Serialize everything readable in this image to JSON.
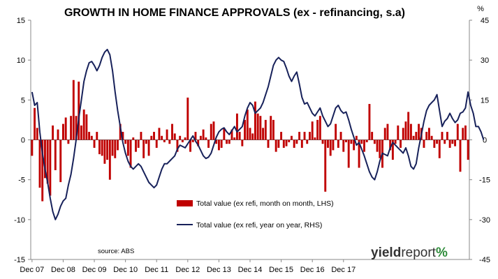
{
  "chart_data": {
    "type": "bar+line",
    "title": "GROWTH IN HOME FINANCE APPROVALS (ex - refinancing, s.a)",
    "right_unit": "%",
    "source": "source: ABS",
    "logo": {
      "part1": "yield",
      "part2": "report",
      "part3": "%"
    },
    "x_tick_labels": [
      "Dec 07",
      "Dec 08",
      "Dec 09",
      "Dec 10",
      "Dec 11",
      "Dec 12",
      "Dec 13",
      "Dec 14",
      "Dec 15",
      "Dec 16",
      "Dec 17"
    ],
    "left_axis": {
      "min": -15,
      "max": 15,
      "ticks": [
        "15",
        "10",
        "5",
        "0",
        "-5",
        "-10",
        "-15"
      ]
    },
    "right_axis": {
      "min": -45,
      "max": 45,
      "ticks": [
        "45",
        "30",
        "15",
        "0",
        "-15",
        "-30",
        "-45"
      ]
    },
    "series": [
      {
        "name": "Total value (ex refi, month on month, LHS)",
        "axis": "left",
        "color": "#c00000",
        "style": "bar",
        "values": [
          -2.0,
          4.0,
          1.5,
          -6.0,
          -7.7,
          -4.8,
          -5.5,
          -7.0,
          1.8,
          -3.8,
          1.3,
          -5.3,
          2.0,
          2.8,
          -0.5,
          3.0,
          7.5,
          3.0,
          7.3,
          1.8,
          3.8,
          3.2,
          1.0,
          0.5,
          -1.0,
          1.0,
          -1.8,
          -2.0,
          -3.0,
          -2.5,
          -5.0,
          -2.0,
          -2.3,
          -1.3,
          2.0,
          1.0,
          -0.5,
          -2.0,
          -3.5,
          0.3,
          -1.5,
          -1.0,
          1.0,
          -2.3,
          -0.5,
          -2.0,
          0.5,
          1.0,
          -1.0,
          1.5,
          0.5,
          -0.3,
          1.3,
          -0.5,
          2.0,
          0.8,
          -1.5,
          0.5,
          -0.3,
          0.3,
          5.3,
          -1.5,
          -0.3,
          1.0,
          -0.8,
          0.5,
          1.3,
          0.3,
          -1.0,
          2.0,
          2.3,
          -0.5,
          -1.3,
          -1.0,
          1.5,
          -0.5,
          -0.5,
          1.3,
          0.3,
          3.3,
          1.0,
          -0.8,
          2.5,
          3.8,
          1.5,
          0.8,
          4.8,
          3.3,
          3.0,
          1.5,
          2.5,
          -1.0,
          3.0,
          2.5,
          -1.5,
          -1.0,
          1.0,
          -1.0,
          -0.8,
          -0.3,
          0.5,
          -1.0,
          -0.5,
          1.0,
          -1.0,
          1.0,
          -0.5,
          1.0,
          2.3,
          0.3,
          2.5,
          3.0,
          -0.5,
          -6.5,
          -1.0,
          -2.0,
          -1.3,
          2.0,
          -1.0,
          1.0,
          -1.5,
          -0.3,
          -3.5,
          -0.5,
          -1.3,
          0.5,
          -3.5,
          -0.5,
          -1.5,
          -0.3,
          4.5,
          1.0,
          -0.5,
          -1.5,
          -2.3,
          -3.5,
          1.5,
          2.0,
          -1.3,
          -2.5,
          -0.5,
          1.8,
          -1.0,
          1.5,
          2.3,
          3.5,
          2.0,
          0.5,
          1.0,
          2.0,
          1.5,
          -1.0,
          1.0,
          1.5,
          0.5,
          -1.0,
          -0.5,
          -2.3,
          1.0,
          -0.5,
          1.0,
          -1.0,
          -0.5,
          -0.8,
          2.0,
          -4.0,
          1.5,
          1.8,
          -2.5
        ]
      },
      {
        "name": "Total value (ex refi, year on year, RHS)",
        "axis": "right",
        "color": "#17215a",
        "style": "line",
        "values": [
          18.0,
          13.0,
          14.0,
          3.0,
          -5.0,
          -11.0,
          -16.0,
          -22.0,
          -27.0,
          -30.0,
          -28.0,
          -25.0,
          -23.0,
          -22.0,
          -17.0,
          -13.0,
          -7.0,
          0.0,
          8.0,
          15.0,
          22.0,
          26.0,
          29.0,
          29.5,
          28.0,
          26.0,
          28.0,
          31.0,
          33.0,
          34.0,
          32.0,
          26.0,
          18.0,
          11.0,
          5.0,
          -1.0,
          -5.0,
          -8.0,
          -10.0,
          -11.0,
          -10.0,
          -9.0,
          -10.0,
          -12.0,
          -14.0,
          -16.0,
          -17.0,
          -18.0,
          -17.0,
          -14.0,
          -11.0,
          -9.0,
          -9.0,
          -8.0,
          -7.0,
          -6.0,
          -3.5,
          -2.0,
          -2.5,
          -3.0,
          -1.5,
          0.0,
          1.5,
          -0.5,
          -2.0,
          -4.0,
          -6.0,
          -7.0,
          -6.5,
          -5.0,
          -2.0,
          1.0,
          3.0,
          4.0,
          4.5,
          3.0,
          2.0,
          3.5,
          5.0,
          3.0,
          4.0,
          5.0,
          9.0,
          12.0,
          14.0,
          13.0,
          10.0,
          11.0,
          12.0,
          14.0,
          17.0,
          20.0,
          24.0,
          28.0,
          30.0,
          31.0,
          30.0,
          29.5,
          27.0,
          24.0,
          22.0,
          24.0,
          25.5,
          21.0,
          16.0,
          13.5,
          14.0,
          12.0,
          10.0,
          9.0,
          10.5,
          12.0,
          9.0,
          7.0,
          5.0,
          6.0,
          9.0,
          12.0,
          13.0,
          11.0,
          10.0,
          10.5,
          7.5,
          4.0,
          1.0,
          -2.0,
          -1.0,
          -3.5,
          -6.0,
          -9.0,
          -12.0,
          -14.0,
          -15.0,
          -12.0,
          -8.0,
          -5.0,
          -5.5,
          -6.0,
          -3.0,
          -1.0,
          -2.0,
          -3.0,
          -4.0,
          -5.0,
          -3.0,
          -6.0,
          -10.0,
          -11.0,
          -9.0,
          -3.0,
          2.0,
          7.0,
          11.0,
          13.0,
          14.0,
          15.0,
          17.0,
          11.0,
          5.0,
          7.0,
          8.0,
          10.0,
          8.0,
          6.5,
          7.5,
          10.0,
          10.5,
          12.0,
          18.0,
          13.0,
          10.0,
          5.0,
          5.0,
          3.0,
          0.0
        ]
      }
    ],
    "legend_placement": "center",
    "grid": false
  }
}
